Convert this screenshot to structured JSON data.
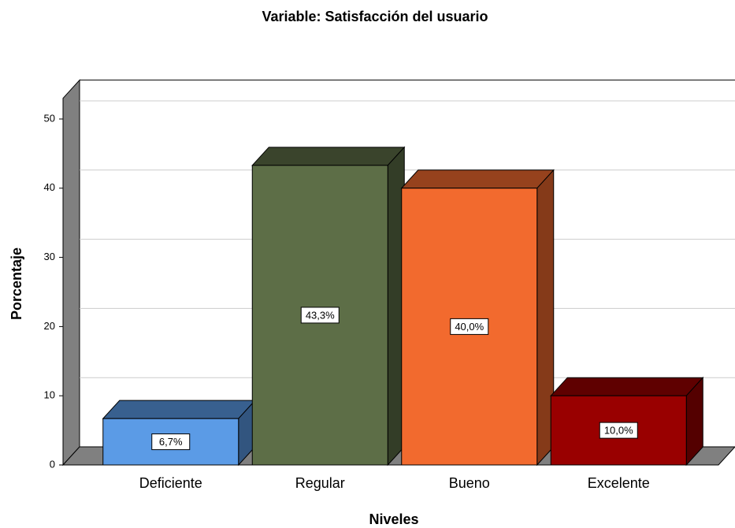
{
  "chart_data": {
    "type": "bar3d",
    "title": "Variable: Satisfacción del usuario",
    "x_label": "Niveles",
    "y_label": "Porcentaje",
    "categories": [
      "Deficiente",
      "Regular",
      "Bueno",
      "Excelente"
    ],
    "values": [
      6.7,
      43.3,
      40.0,
      10.0
    ],
    "value_labels": [
      "6,7%",
      "43,3%",
      "40,0%",
      "10,0%"
    ],
    "colors": [
      "#5b9be6",
      "#5d6e47",
      "#f26a2e",
      "#990000"
    ],
    "ylim": [
      0,
      53
    ],
    "yticks": [
      0,
      10,
      20,
      30,
      40,
      50
    ],
    "grid": true
  }
}
